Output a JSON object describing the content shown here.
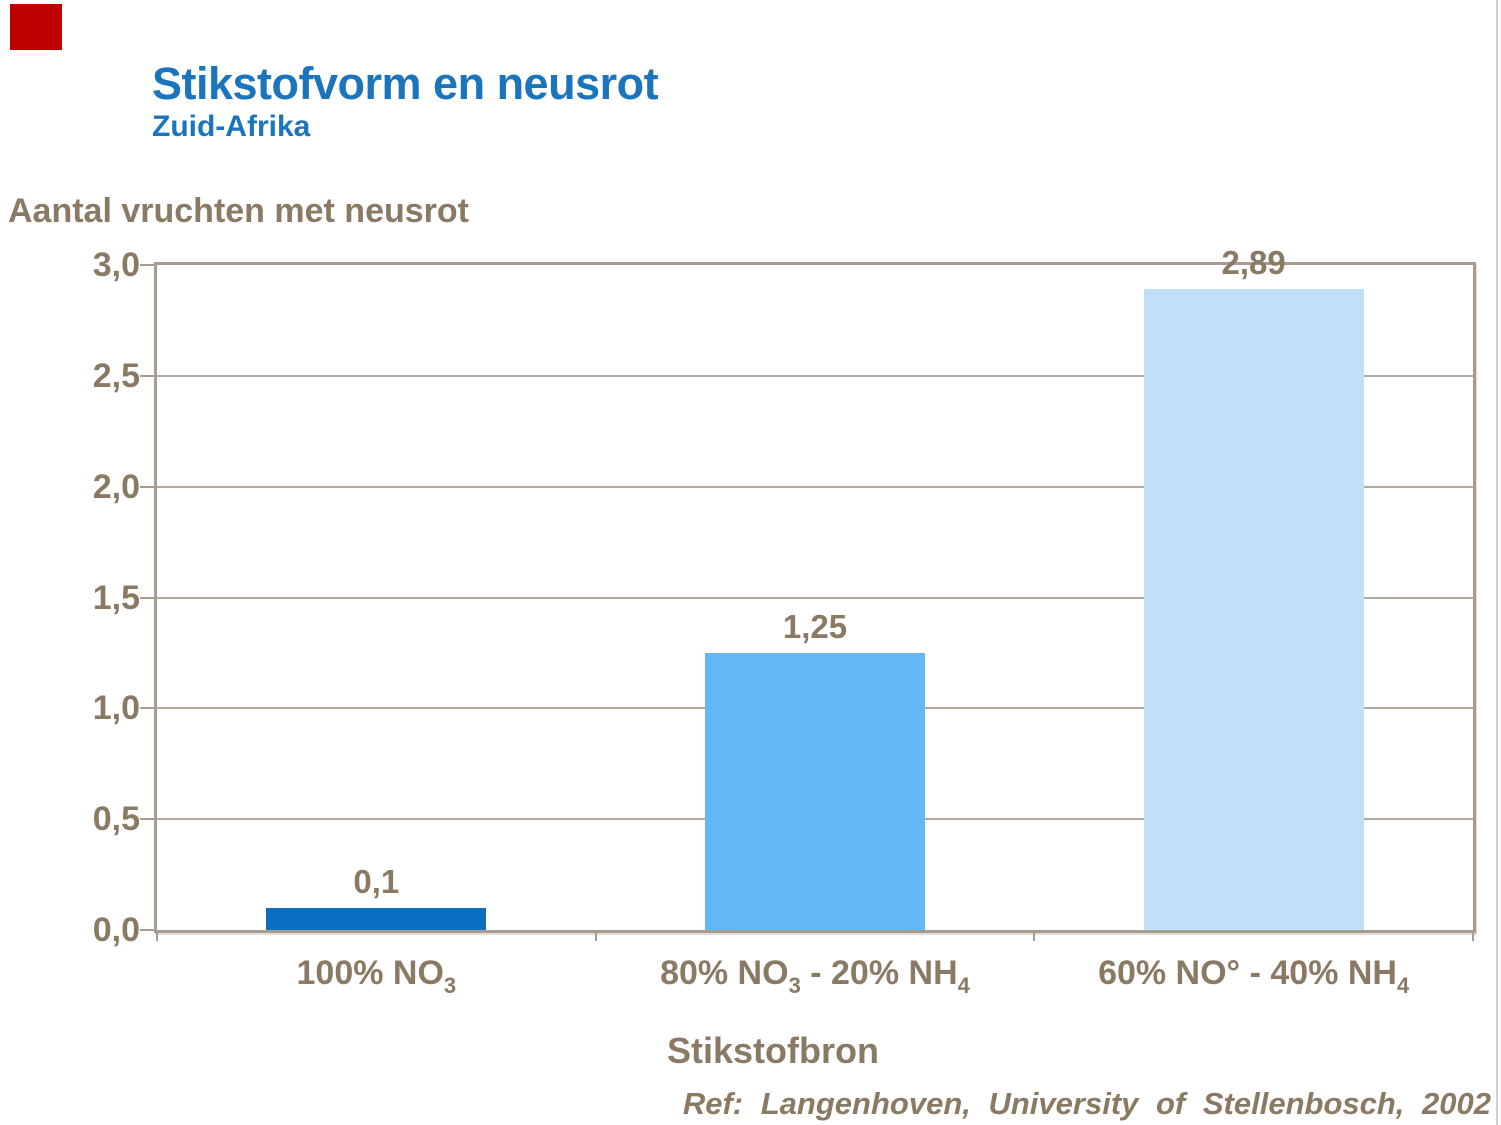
{
  "slide": {
    "title": "Stikstofvorm en neusrot",
    "subtitle": "Zuid-Afrika",
    "ref": "Ref: Langenhoven, University of Stellenbosch, 2002"
  },
  "decor": {
    "red_square_color": "#c00000"
  },
  "colors": {
    "title_blue": "#1b75bc",
    "text_brown": "#8a7a64",
    "axis_taupe": "#a79c8f",
    "gridline_taupe": "#b3a99d"
  },
  "chart": {
    "y_axis_title": "Aantal vruchten met neusrot",
    "x_axis_title": "Stikstofbron",
    "y_ticks": [
      "3,0",
      "2,5",
      "2,0",
      "1,5",
      "1,0",
      "0,5",
      "0,0"
    ],
    "bars": [
      {
        "label_parts": [
          {
            "t": "100% NO"
          },
          {
            "s": "3"
          }
        ],
        "value": 0.1,
        "value_label": "0,1",
        "color": "#0b70bf"
      },
      {
        "label_parts": [
          {
            "t": "80% NO"
          },
          {
            "s": "3"
          },
          {
            "t": " - 20% NH"
          },
          {
            "s": "4"
          }
        ],
        "value": 1.25,
        "value_label": "1,25",
        "color": "#63b8f6"
      },
      {
        "label_parts": [
          {
            "t": "60% NO° - 40% NH"
          },
          {
            "s": "4"
          }
        ],
        "value": 2.89,
        "value_label": "2,89",
        "color": "#bfe0f8"
      }
    ]
  },
  "chart_data": {
    "type": "bar",
    "title": "Stikstofvorm en neusrot",
    "subtitle": "Zuid-Afrika",
    "categories": [
      "100% NO₃",
      "80% NO₃ - 20% NH₄",
      "60% NO° - 40% NH₄"
    ],
    "values": [
      0.1,
      1.25,
      2.89
    ],
    "value_labels": [
      "0,1",
      "1,25",
      "2,89"
    ],
    "xlabel": "Stikstofbron",
    "ylabel": "Aantal vruchten met neusrot",
    "ylim": [
      0,
      3
    ],
    "ytick_step": 0.5,
    "ytick_labels": [
      "0,0",
      "0,5",
      "1,0",
      "1,5",
      "2,0",
      "2,5",
      "3,0"
    ],
    "grid": "horizontal",
    "legend": false,
    "bar_colors": [
      "#0b70bf",
      "#63b8f6",
      "#bfe0f8"
    ],
    "source": "Ref: Langenhoven, University of Stellenbosch, 2002"
  }
}
